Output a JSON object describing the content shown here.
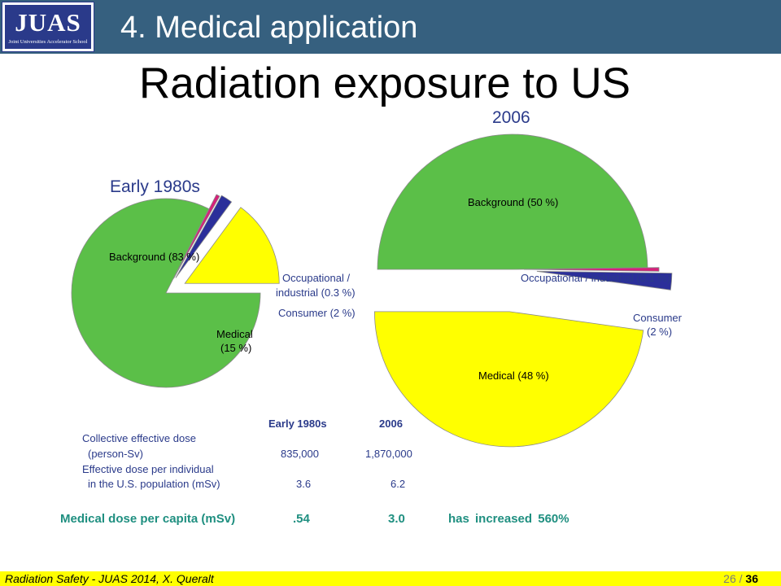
{
  "header": {
    "logo_text": "JUAS",
    "logo_subtitle": "Joint Universities Accelerator School",
    "section_title": "4. Medical application"
  },
  "main_title": "Radiation exposure to US",
  "chart_data": [
    {
      "type": "pie",
      "title": "Early 1980s",
      "slices": [
        {
          "label": "Background (83 %)",
          "value": 83,
          "color": "#5bbf48"
        },
        {
          "label": "Occupational / industrial (0.3 %)",
          "value": 0.3,
          "color": "#d6207a"
        },
        {
          "label": "Consumer (2 %)",
          "value": 2,
          "color": "#2b2f9a"
        },
        {
          "label": "Medical (15 %)",
          "value": 15,
          "color": "#ffff00"
        }
      ]
    },
    {
      "type": "pie",
      "title": "2006",
      "slices": [
        {
          "label": "Background (50 %)",
          "value": 50,
          "color": "#5bbf48"
        },
        {
          "label": "Occupational / industrial (0.1 %)",
          "value": 0.1,
          "color": "#d6207a"
        },
        {
          "label": "Consumer (2 %)",
          "value": 2,
          "color": "#2b2f9a"
        },
        {
          "label": "Medical (48 %)",
          "value": 48,
          "color": "#ffff00"
        }
      ]
    }
  ],
  "pie_labels": {
    "p1_background": "Background (83 %)",
    "p1_occ_line1": "Occupational /",
    "p1_occ_line2": "industrial (0.3 %)",
    "p1_consumer": "Consumer (2 %)",
    "p1_medical_line1": "Medical",
    "p1_medical_line2": "(15 %)",
    "p2_background": "Background (50 %)",
    "p2_occ": "Occupational / industrial (0.1 %)",
    "p2_consumer_line1": "Consumer",
    "p2_consumer_line2": "(2 %)",
    "p2_medical": "Medical (48 %)"
  },
  "dose_table": {
    "headers": [
      "Early 1980s",
      "2006"
    ],
    "rows": [
      {
        "label_line1": "Collective effective dose",
        "label_line2": "(person-Sv)",
        "early": "835,000",
        "y2006": "1,870,000"
      },
      {
        "label_line1": "Effective dose per individual",
        "label_line2": "in the U.S. population (mSv)",
        "early": "3.6",
        "y2006": "6.2"
      }
    ]
  },
  "medical_dose": {
    "label": "Medical dose per capita (mSv)",
    "early": ".54",
    "y2006": "3.0",
    "note": "has increased 560%"
  },
  "footer": {
    "left": "Radiation Safety - JUAS 2014, X. Queralt",
    "page_current": "26 /",
    "page_total": "36"
  },
  "colors": {
    "header_bg": "#36607f",
    "title_text": "#2a3a8a",
    "highlight_text": "#1f8f80",
    "footer_bg": "#ffff00"
  }
}
